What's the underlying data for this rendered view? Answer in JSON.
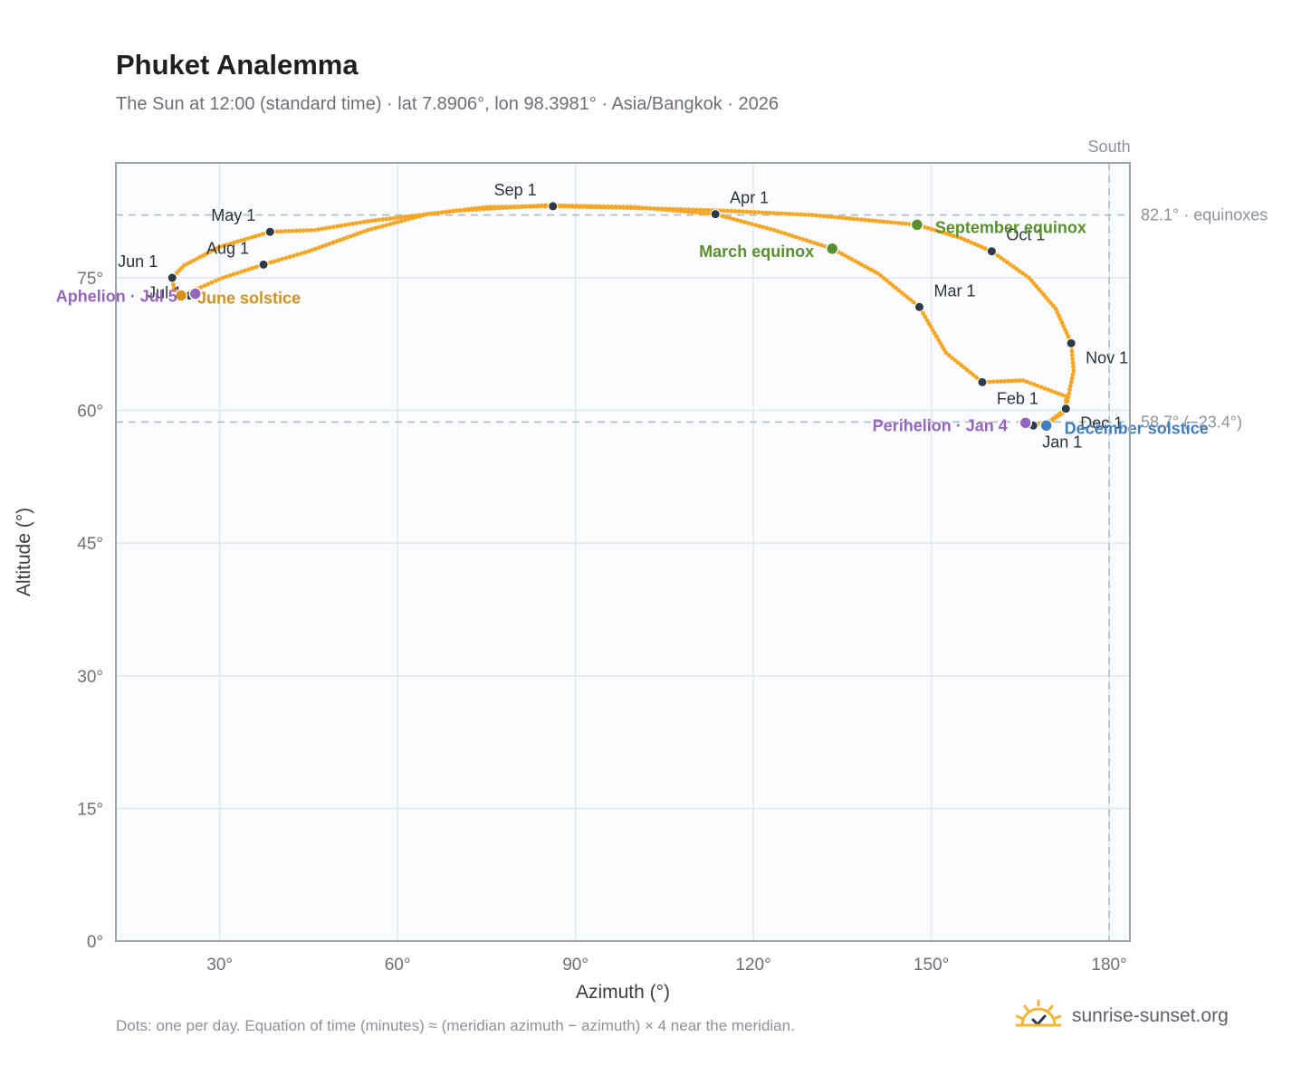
{
  "title": "Phuket Analemma",
  "subtitle": "The Sun at 12:00 (standard time) · lat 7.8906°, lon 98.3981° · Asia/Bangkok · 2026",
  "footnote": "Dots: one per day. Equation of time (minutes) ≈ (meridian azimuth − azimuth) × 4 near the meridian.",
  "brand": {
    "text": "sunrise-sunset.org",
    "icon": "sun-logo-icon"
  },
  "colors": {
    "curve": "#f5a623",
    "month_dot": "#2f3a48",
    "equinox": "#5a8f2e",
    "solstice_june": "#d4921a",
    "solstice_december": "#3f7fbf",
    "apsis": "#9467bd",
    "plot_bg": "#f9fbfd",
    "grid": "#e3e8ee",
    "frame": "#9aa3ae",
    "refline": "#b0b7c0"
  },
  "chart_data": {
    "type": "scatter",
    "xlabel": "Azimuth (°)",
    "ylabel": "Altitude (°)",
    "xlim": [
      12.5,
      183.5
    ],
    "ylim": [
      0,
      88
    ],
    "xticks": [
      30,
      60,
      90,
      120,
      150,
      180
    ],
    "yticks": [
      0,
      15,
      30,
      45,
      60,
      75
    ],
    "xtick_labels": [
      "30°",
      "60°",
      "90°",
      "120°",
      "150°",
      "180°"
    ],
    "ytick_labels": [
      "0°",
      "15°",
      "30°",
      "45°",
      "60°",
      "75°"
    ],
    "grid": true,
    "meridian": {
      "azimuth": 180,
      "label": "South"
    },
    "reference_lines": [
      {
        "altitude": 82.1,
        "label": "82.1° · equinoxes"
      },
      {
        "altitude": 58.7,
        "label": "58.7° (−23.4°)"
      }
    ],
    "series": [
      {
        "kind": "daily-path",
        "points": [
          [
            166.9,
            58.3
          ],
          [
            170.4,
            58.9
          ],
          [
            172.8,
            60.0
          ],
          [
            172.7,
            61.6
          ],
          [
            165.5,
            63.4
          ],
          [
            158.6,
            63.2
          ],
          [
            152.5,
            66.5
          ],
          [
            148.0,
            71.7
          ],
          [
            141.0,
            75.5
          ],
          [
            133.3,
            78.3
          ],
          [
            123.5,
            80.4
          ],
          [
            113.6,
            82.2
          ],
          [
            100.0,
            83.0
          ],
          [
            85.0,
            83.2
          ],
          [
            70.0,
            82.6
          ],
          [
            55.0,
            81.4
          ],
          [
            46.0,
            80.4
          ],
          [
            38.5,
            80.2
          ],
          [
            30.0,
            78.5
          ],
          [
            24.0,
            76.4
          ],
          [
            22.0,
            75.0
          ],
          [
            22.3,
            73.8
          ],
          [
            23.5,
            73.0
          ],
          [
            25.0,
            73.4
          ],
          [
            30.5,
            75.0
          ],
          [
            37.4,
            76.5
          ],
          [
            45.0,
            78.0
          ],
          [
            55.0,
            80.4
          ],
          [
            65.0,
            82.2
          ],
          [
            75.0,
            83.0
          ],
          [
            86.2,
            83.1
          ],
          [
            100.0,
            82.9
          ],
          [
            115.0,
            82.6
          ],
          [
            130.0,
            82.1
          ],
          [
            147.6,
            81.0
          ],
          [
            155.0,
            79.5
          ],
          [
            160.2,
            78.0
          ],
          [
            166.5,
            75.0
          ],
          [
            171.0,
            71.5
          ],
          [
            173.6,
            67.6
          ],
          [
            174.0,
            64.5
          ],
          [
            172.7,
            60.2
          ],
          [
            170.0,
            58.8
          ],
          [
            166.9,
            58.3
          ]
        ]
      }
    ],
    "month_markers": [
      {
        "label": "Jan 1",
        "azimuth": 167.2,
        "altitude": 58.3
      },
      {
        "label": "Feb 1",
        "azimuth": 158.6,
        "altitude": 63.2
      },
      {
        "label": "Mar 1",
        "azimuth": 148.0,
        "altitude": 71.7
      },
      {
        "label": "Apr 1",
        "azimuth": 113.6,
        "altitude": 82.2
      },
      {
        "label": "May 1",
        "azimuth": 38.5,
        "altitude": 80.2
      },
      {
        "label": "Jun 1",
        "azimuth": 22.0,
        "altitude": 75.0
      },
      {
        "label": "Jul 1",
        "azimuth": 24.9,
        "altitude": 73.0
      },
      {
        "label": "Aug 1",
        "azimuth": 37.4,
        "altitude": 76.5
      },
      {
        "label": "Sep 1",
        "azimuth": 86.2,
        "altitude": 83.1
      },
      {
        "label": "Oct 1",
        "azimuth": 160.2,
        "altitude": 78.0
      },
      {
        "label": "Nov 1",
        "azimuth": 173.6,
        "altitude": 67.6
      },
      {
        "label": "Dec 1",
        "azimuth": 172.7,
        "altitude": 60.2
      }
    ],
    "events": [
      {
        "label": "March equinox",
        "azimuth": 133.3,
        "altitude": 78.3,
        "color_key": "equinox"
      },
      {
        "label": "September equinox",
        "azimuth": 147.6,
        "altitude": 81.0,
        "color_key": "equinox"
      },
      {
        "label": "June solstice",
        "azimuth": 23.5,
        "altitude": 73.0,
        "color_key": "solstice_june"
      },
      {
        "label": "December solstice",
        "azimuth": 169.4,
        "altitude": 58.3,
        "color_key": "solstice_december"
      },
      {
        "label": "Aphelion · Jul 5",
        "azimuth": 25.9,
        "altitude": 73.2,
        "color_key": "apsis"
      },
      {
        "label": "Perihelion · Jan 4",
        "azimuth": 165.9,
        "altitude": 58.6,
        "color_key": "apsis"
      }
    ]
  }
}
